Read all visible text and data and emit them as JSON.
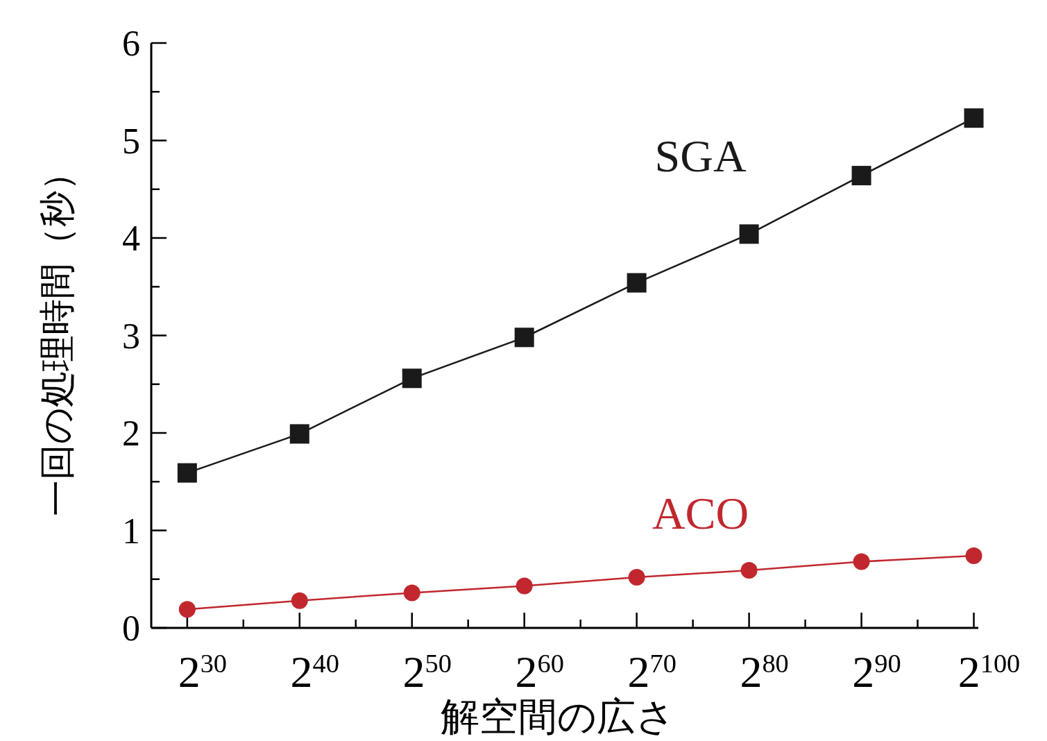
{
  "chart_data": {
    "type": "line",
    "xlabel": "解空間の広さ",
    "ylabel": "一回の処理時間（秒）",
    "categories": [
      "2$^{30}$",
      "2$^{40}$",
      "2$^{50}$",
      "2$^{60}$",
      "2$^{70}$",
      "2$^{80}$",
      "2$^{90}$",
      "2$^{100}$"
    ],
    "ylim": [
      0,
      6
    ],
    "yticks": [
      0,
      {
        "value": 0.5,
        "label": null
      },
      1,
      {
        "value": 1.5,
        "label": null
      },
      2,
      {
        "value": 2.5,
        "label": null
      },
      3,
      {
        "value": 3.5,
        "label": null
      },
      4,
      {
        "value": 4.5,
        "label": null
      },
      5,
      {
        "value": 5.5,
        "label": null
      },
      6
    ],
    "grid": false,
    "series": [
      {
        "name": "SGA",
        "color": "#1a1a1a",
        "marker": "square",
        "values": [
          1.59,
          1.99,
          2.56,
          2.98,
          3.54,
          4.04,
          4.64,
          5.23
        ]
      },
      {
        "name": "ACO",
        "color": "#c0282e",
        "marker": "circle",
        "values": [
          0.19,
          0.28,
          0.36,
          0.43,
          0.52,
          0.59,
          0.68,
          0.74
        ]
      }
    ]
  }
}
